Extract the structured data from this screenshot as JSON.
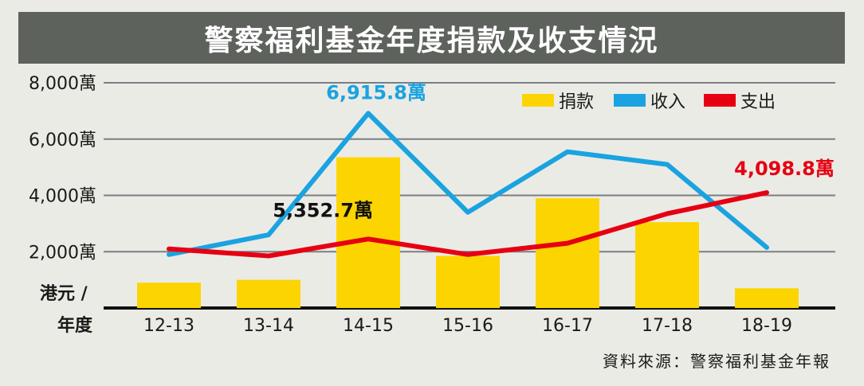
{
  "title": "警察福利基金年度捐款及收支情況",
  "source": "資料來源：警察福利基金年報",
  "colors": {
    "title_bg": "#5e625d",
    "background": "#ebebe6",
    "donation": "#fcd500",
    "income": "#1aa3e0",
    "expense": "#e60012",
    "grid": "#7b7e82"
  },
  "y_axis_unit": [
    "港元 /",
    "年度"
  ],
  "chart_data": {
    "type": "bar",
    "title": "警察福利基金年度捐款及收支情況",
    "categories": [
      "12-13",
      "13-14",
      "14-15",
      "15-16",
      "16-17",
      "17-18",
      "18-19"
    ],
    "ylim": [
      0,
      8000
    ],
    "yticks": [
      2000,
      4000,
      6000,
      8000
    ],
    "ytick_labels": [
      "2,000萬",
      "4,000萬",
      "6,000萬",
      "8,000萬"
    ],
    "grid": true,
    "legend_position": "top-right",
    "series": [
      {
        "name": "捐款",
        "type": "bar",
        "values": [
          900,
          1000,
          5352.7,
          1850,
          3900,
          3050,
          700
        ]
      },
      {
        "name": "收入",
        "type": "line",
        "values": [
          1900,
          2600,
          6915.8,
          3400,
          5550,
          5100,
          2150
        ]
      },
      {
        "name": "支出",
        "type": "line",
        "values": [
          2100,
          1850,
          2450,
          1900,
          2300,
          3350,
          4098.8
        ]
      }
    ],
    "annotations": [
      {
        "text": "6,915.8萬",
        "series": "收入",
        "category": "14-15"
      },
      {
        "text": "5,352.7萬",
        "series": "捐款",
        "category": "14-15"
      },
      {
        "text": "4,098.8萬",
        "series": "支出",
        "category": "18-19"
      }
    ]
  }
}
